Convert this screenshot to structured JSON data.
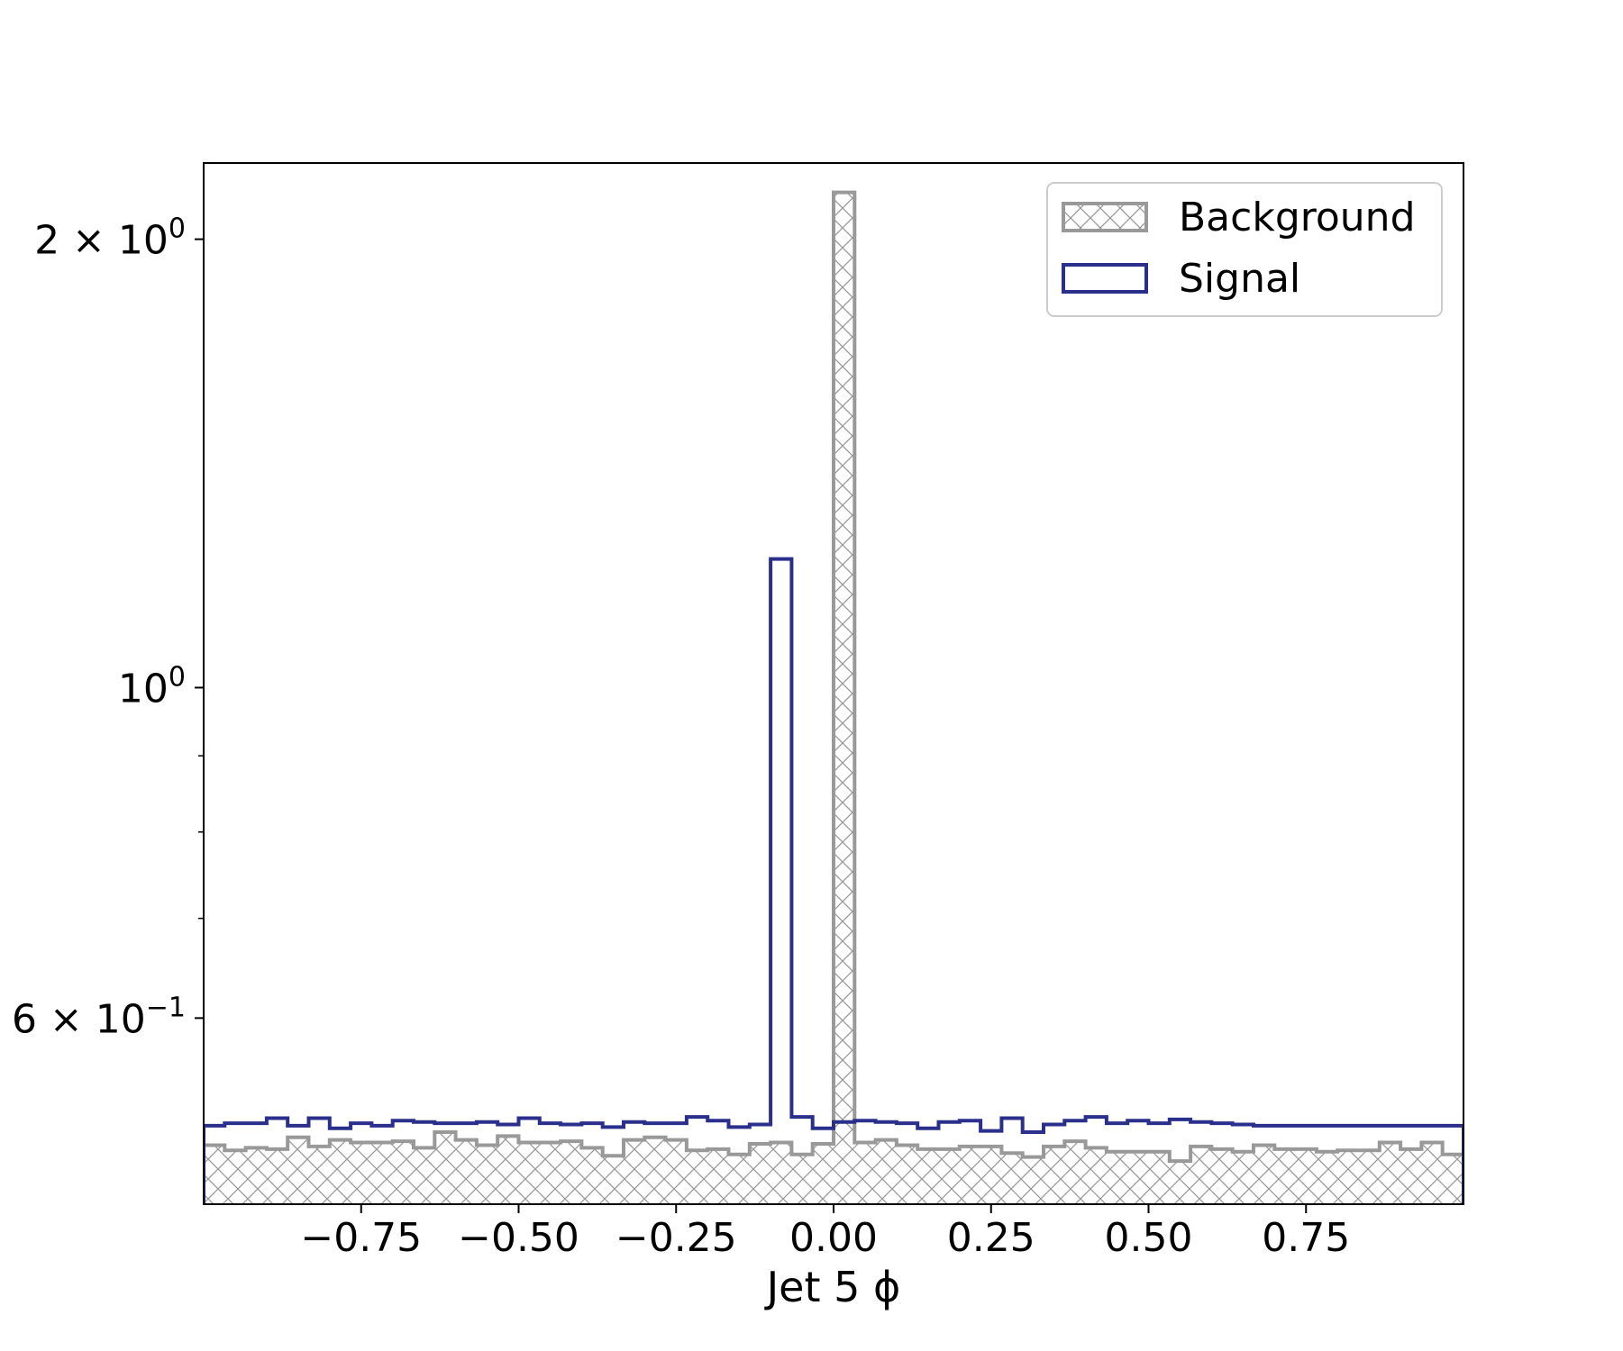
{
  "chart_data": {
    "type": "histogram",
    "xlabel": "Jet 5 ϕ",
    "ylabel": "",
    "xlim": [
      -1.0,
      1.0
    ],
    "ylim": [
      0.45,
      2.25
    ],
    "yscale": "log",
    "grid": false,
    "legend_position": "top-right",
    "x_ticks": [
      -0.75,
      -0.5,
      -0.25,
      0.0,
      0.25,
      0.5,
      0.75
    ],
    "x_tick_labels": [
      "−0.75",
      "−0.50",
      "−0.25",
      "0.00",
      "0.25",
      "0.50",
      "0.75"
    ],
    "y_major_ticks": [
      {
        "value": 2.0,
        "mantissa": "2",
        "exponent": "0"
      },
      {
        "value": 1.0,
        "mantissa": "",
        "exponent": "0"
      },
      {
        "value": 0.6,
        "mantissa": "6",
        "exponent": "−1"
      }
    ],
    "y_minor_ticks": [
      0.7,
      0.8,
      0.9
    ],
    "bin_edges_range": [
      -1.0,
      1.0
    ],
    "n_bins": 60,
    "series": [
      {
        "name": "Background",
        "style": "hatched",
        "color": "#999999",
        "values": [
          0.493,
          0.489,
          0.491,
          0.49,
          0.499,
          0.492,
          0.497,
          0.495,
          0.495,
          0.496,
          0.491,
          0.503,
          0.497,
          0.493,
          0.5,
          0.495,
          0.495,
          0.496,
          0.491,
          0.485,
          0.497,
          0.499,
          0.497,
          0.489,
          0.49,
          0.486,
          0.494,
          0.495,
          0.486,
          0.494,
          2.15,
          0.495,
          0.497,
          0.493,
          0.49,
          0.49,
          0.492,
          0.492,
          0.487,
          0.484,
          0.492,
          0.496,
          0.491,
          0.488,
          0.488,
          0.488,
          0.481,
          0.492,
          0.49,
          0.488,
          0.493,
          0.49,
          0.49,
          0.488,
          0.489,
          0.489,
          0.495,
          0.49,
          0.495,
          0.486
        ]
      },
      {
        "name": "Signal",
        "style": "step",
        "color": "#2b2f8c",
        "values": [
          0.508,
          0.51,
          0.51,
          0.514,
          0.508,
          0.514,
          0.506,
          0.51,
          0.508,
          0.512,
          0.511,
          0.51,
          0.51,
          0.511,
          0.509,
          0.514,
          0.51,
          0.509,
          0.51,
          0.507,
          0.511,
          0.51,
          0.51,
          0.515,
          0.512,
          0.507,
          0.509,
          1.22,
          0.515,
          0.506,
          0.511,
          0.512,
          0.511,
          0.51,
          0.506,
          0.511,
          0.512,
          0.504,
          0.514,
          0.503,
          0.509,
          0.512,
          0.515,
          0.51,
          0.512,
          0.51,
          0.513,
          0.511,
          0.51,
          0.509,
          0.508,
          0.508,
          0.508,
          0.508,
          0.508,
          0.508,
          0.508,
          0.508,
          0.508,
          0.508
        ]
      }
    ]
  }
}
